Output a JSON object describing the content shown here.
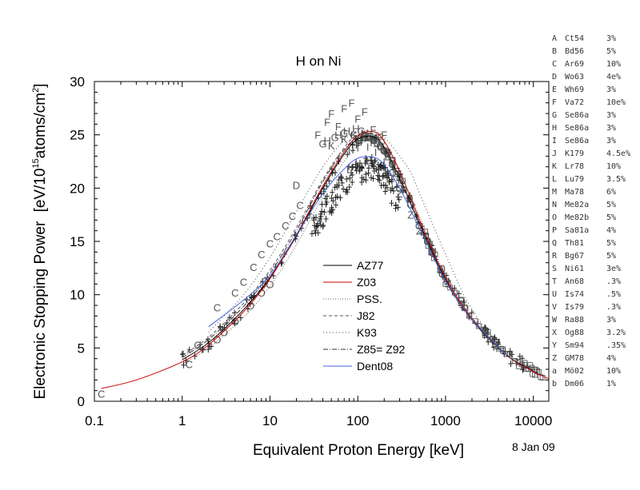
{
  "chart_data": {
    "type": "scatter",
    "title": "H on Ni",
    "xlabel": "Equivalent Proton Energy [keV]",
    "ylabel": "Electronic Stopping Power [eV/(10^15 atoms/cm^2)]",
    "ylabel_text": "Electronic Stopping Power",
    "ylabel_unit_pre": "[eV/10",
    "ylabel_unit_sup1": "15",
    "ylabel_unit_mid": "atoms/cm",
    "ylabel_unit_sup2": "2",
    "ylabel_unit_post": "]",
    "xscale": "log",
    "xlim": [
      0.1,
      15000
    ],
    "ylim": [
      0,
      30
    ],
    "x_ticks": [
      "0.1",
      "1",
      "10",
      "100",
      "1000",
      "10000"
    ],
    "y_ticks": [
      "0",
      "5",
      "10",
      "15",
      "20",
      "25",
      "30"
    ],
    "grid": false,
    "legend_position": "center-bottom",
    "date": "8 Jan 09",
    "series": [
      {
        "name": "AZ77",
        "style": "solid",
        "color": "#000000",
        "x": [
          1,
          2,
          5,
          10,
          20,
          40,
          70,
          100,
          150,
          200,
          300,
          500,
          1000,
          2000,
          5000,
          10000
        ],
        "y": [
          3.9,
          5.5,
          8.6,
          11.6,
          15.5,
          20.0,
          23.2,
          24.6,
          24.8,
          23.8,
          21.0,
          16.8,
          11.4,
          7.7,
          4.3,
          2.9
        ]
      },
      {
        "name": "Z03",
        "style": "solid",
        "color": "#cc0000",
        "x": [
          0.12,
          0.3,
          1,
          2,
          5,
          10,
          20,
          40,
          70,
          100,
          150,
          200,
          300,
          500,
          1000,
          2000,
          5000,
          10000,
          15000
        ],
        "y": [
          1.2,
          2.0,
          3.7,
          5.3,
          8.4,
          11.5,
          15.6,
          20.2,
          23.4,
          24.9,
          25.3,
          24.4,
          21.6,
          17.1,
          11.6,
          7.8,
          4.3,
          2.8,
          2.1
        ]
      },
      {
        "name": "PSS.",
        "style": "dotted",
        "color": "#666666",
        "x": [
          1,
          2,
          5,
          10,
          20,
          40,
          70,
          100,
          150,
          200,
          300,
          500,
          1000,
          2000,
          5000,
          10000
        ],
        "y": [
          3.5,
          5.0,
          7.9,
          10.8,
          14.7,
          19.2,
          22.5,
          24.0,
          24.5,
          23.9,
          21.5,
          17.4,
          11.8,
          7.9,
          4.4,
          2.9
        ]
      },
      {
        "name": "J82",
        "style": "dashed",
        "color": "#555555",
        "x": [
          1,
          2,
          5,
          10,
          20,
          40,
          70,
          100,
          150,
          200,
          300,
          500,
          1000,
          2000,
          5000,
          10000
        ],
        "y": [
          4.3,
          6.0,
          9.2,
          12.3,
          16.3,
          20.8,
          23.8,
          25.0,
          25.0,
          23.9,
          21.0,
          16.7,
          11.3,
          7.6,
          4.3,
          2.9
        ]
      },
      {
        "name": "K93",
        "style": "dotted2",
        "color": "#444444",
        "x": [
          2,
          5,
          10,
          20,
          40,
          70,
          100,
          150,
          200,
          300,
          400,
          500,
          1000,
          2000,
          5000,
          10000
        ],
        "y": [
          6.5,
          10.0,
          13.5,
          17.8,
          22.0,
          24.5,
          25.3,
          25.3,
          24.8,
          23.0,
          21.5,
          19.6,
          13.8,
          8.6,
          4.6,
          3.0
        ]
      },
      {
        "name": "Z85= Z92",
        "style": "dashdot",
        "color": "#333333",
        "x": [
          1,
          2,
          5,
          10,
          20,
          40,
          70,
          100,
          150,
          200,
          300,
          500,
          1000,
          2000,
          5000,
          10000
        ],
        "y": [
          4.1,
          5.8,
          8.9,
          12.0,
          16.0,
          20.6,
          23.6,
          24.7,
          24.6,
          23.5,
          20.8,
          16.6,
          11.3,
          7.6,
          4.3,
          2.9
        ]
      },
      {
        "name": "Dent08",
        "style": "solid",
        "color": "#4466dd",
        "x": [
          2,
          5,
          10,
          20,
          40,
          70,
          100,
          150,
          200,
          300,
          500,
          1000,
          2000,
          5000
        ],
        "y": [
          7.0,
          9.5,
          11.8,
          15.6,
          19.5,
          21.8,
          22.8,
          22.9,
          22.2,
          20.0,
          16.3,
          11.3,
          7.7,
          4.3
        ]
      }
    ],
    "measured_data": [
      {
        "symbol": "C",
        "x": [
          0.12,
          1.2,
          1.5,
          2.5,
          4
        ],
        "y": [
          0.7,
          3.5,
          5.3,
          8.8,
          10.2
        ]
      },
      {
        "symbol": "C",
        "x": [
          5,
          6.5,
          8,
          10,
          12,
          15,
          18,
          22
        ],
        "y": [
          11.2,
          12.6,
          13.8,
          14.8,
          15.5,
          16.5,
          17.4,
          18.4
        ]
      },
      {
        "symbol": "D",
        "x": [
          20
        ],
        "y": [
          20.3
        ]
      },
      {
        "symbol": "F",
        "x": [
          35,
          45,
          50,
          60,
          70,
          85,
          100,
          120,
          150,
          180,
          200
        ],
        "y": [
          25.0,
          26.2,
          27.0,
          25.8,
          27.5,
          28.0,
          26.5,
          27.2,
          25.5,
          24.8,
          25.0
        ]
      },
      {
        "symbol": "G",
        "x": [
          40,
          55,
          70,
          90,
          110,
          140,
          180,
          220
        ],
        "y": [
          24.2,
          24.8,
          25.2,
          25.0,
          25.4,
          24.9,
          24.0,
          23.4
        ]
      },
      {
        "symbol": "H",
        "x": [
          45,
          60,
          75,
          95,
          120,
          150
        ],
        "y": [
          24.5,
          25.0,
          25.4,
          25.6,
          25.2,
          24.7
        ]
      },
      {
        "symbol": "I",
        "x": [
          60,
          80,
          100,
          130,
          160,
          200
        ],
        "y": [
          22.8,
          23.5,
          23.8,
          23.9,
          23.4,
          22.5
        ]
      },
      {
        "symbol": "K",
        "x": [
          50,
          70,
          90,
          120,
          150
        ],
        "y": [
          24.0,
          24.6,
          25.0,
          24.8,
          24.3
        ]
      },
      {
        "symbol": "L",
        "x": [
          80,
          100,
          130,
          160
        ],
        "y": [
          21.8,
          22.4,
          22.6,
          22.2
        ]
      },
      {
        "symbol": "Z",
        "x": [
          300,
          400,
          500
        ],
        "y": [
          19.5,
          17.5,
          16.0
        ]
      },
      {
        "symbol": "O",
        "x": [
          2.5,
          3,
          4,
          6,
          8,
          10
        ],
        "y": [
          5.8,
          6.5,
          7.5,
          9.0,
          10.2,
          11.0
        ]
      },
      {
        "symbol": "O",
        "x": [
          250,
          300,
          400,
          500,
          700,
          900
        ],
        "y": [
          21.5,
          20.0,
          18.5,
          16.5,
          14.0,
          12.5
        ]
      },
      {
        "symbol": "E",
        "x": [
          220,
          250,
          280
        ],
        "y": [
          23.0,
          22.6,
          21.6
        ]
      },
      {
        "symbol": "U",
        "x": [
          150,
          200,
          250,
          300
        ],
        "y": [
          24.6,
          23.5,
          22.5,
          21.0
        ]
      }
    ],
    "measured_clouds": [
      {
        "symbol": "+",
        "source": "Ct54",
        "x_from": 1,
        "x_to": 8000,
        "scatter": 0.6
      },
      {
        "symbol": "+",
        "source": "Ct54",
        "x_from": 30,
        "x_to": 300,
        "scatter": 1.2
      },
      {
        "symbol": "□",
        "source": "Sa81a",
        "x_from": 100,
        "x_to": 14000,
        "scatter": 0.4
      }
    ],
    "references": [
      {
        "key": "A",
        "name": "Ct54",
        "err": "3%"
      },
      {
        "key": "B",
        "name": "Bd56",
        "err": "5%"
      },
      {
        "key": "C",
        "name": "Ar69",
        "err": "10%"
      },
      {
        "key": "D",
        "name": "Wo63",
        "err": "4e%"
      },
      {
        "key": "E",
        "name": "Wh69",
        "err": "3%"
      },
      {
        "key": "F",
        "name": "Va72",
        "err": "10e%"
      },
      {
        "key": "G",
        "name": "Se86a",
        "err": "3%"
      },
      {
        "key": "H",
        "name": "Se86a",
        "err": "3%"
      },
      {
        "key": "I",
        "name": "Se86a",
        "err": "3%"
      },
      {
        "key": "J",
        "name": "K179",
        "err": "4.5e%"
      },
      {
        "key": "K",
        "name": "Lr78",
        "err": "10%"
      },
      {
        "key": "L",
        "name": "Lu79",
        "err": "3.5%"
      },
      {
        "key": "M",
        "name": "Ma78",
        "err": "6%"
      },
      {
        "key": "N",
        "name": "Me82a",
        "err": "5%"
      },
      {
        "key": "O",
        "name": "Me82b",
        "err": "5%"
      },
      {
        "key": "P",
        "name": "Sa81a",
        "err": "4%"
      },
      {
        "key": "Q",
        "name": "Th81",
        "err": "5%"
      },
      {
        "key": "R",
        "name": "Bg67",
        "err": "5%"
      },
      {
        "key": "S",
        "name": "Ni61",
        "err": "3e%"
      },
      {
        "key": "T",
        "name": "An68",
        "err": ".3%"
      },
      {
        "key": "U",
        "name": "Is74",
        "err": ".5%"
      },
      {
        "key": "V",
        "name": "Is79",
        "err": ".3%"
      },
      {
        "key": "W",
        "name": "Ra88",
        "err": "3%"
      },
      {
        "key": "X",
        "name": "Og88",
        "err": "3.2%"
      },
      {
        "key": "Y",
        "name": "Sm94",
        "err": ".35%"
      },
      {
        "key": "Z",
        "name": "GM78",
        "err": "4%"
      },
      {
        "key": "a",
        "name": "Mö02",
        "err": "10%"
      },
      {
        "key": "b",
        "name": "Dm06",
        "err": "1%"
      }
    ]
  }
}
